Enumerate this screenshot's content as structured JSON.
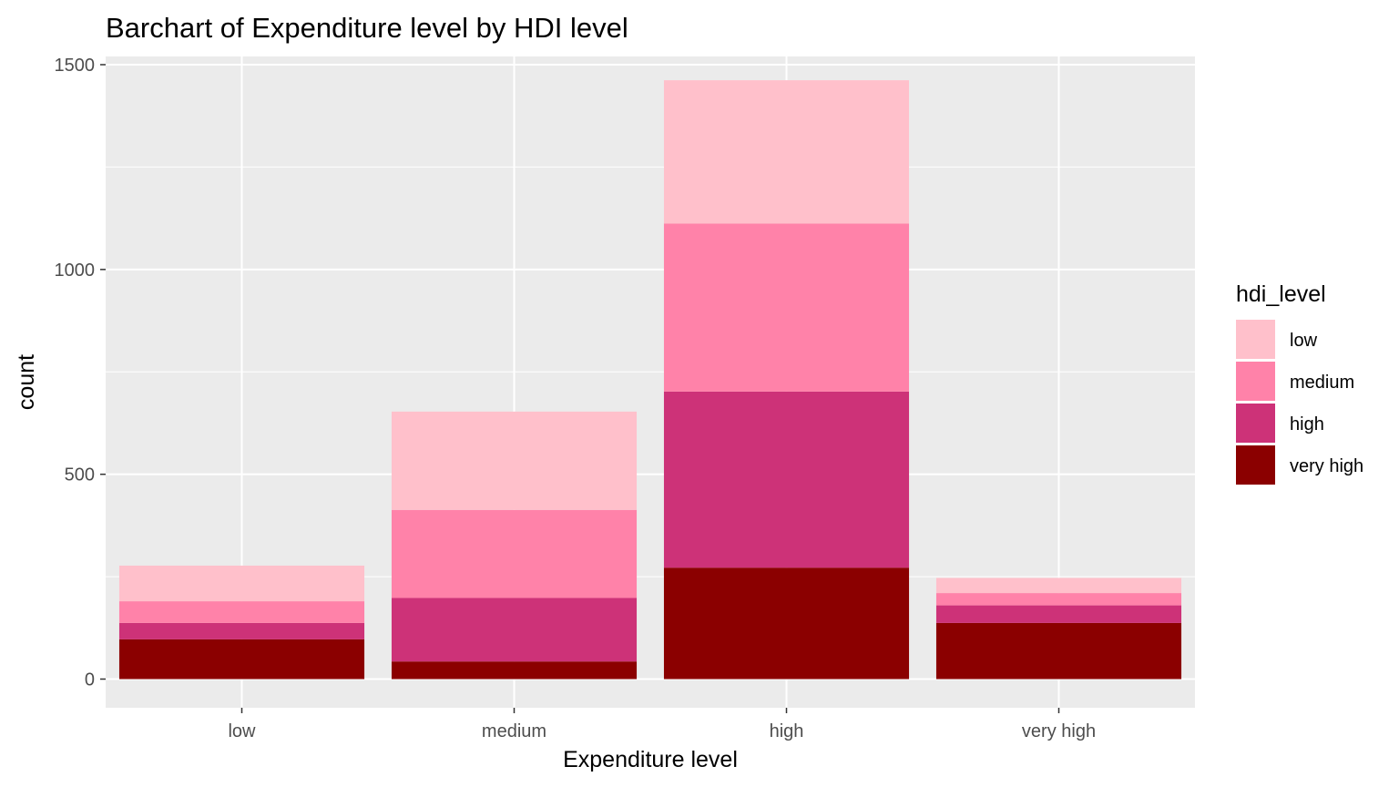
{
  "chart_data": {
    "type": "bar",
    "stacked": true,
    "title": "Barchart of Expenditure level by HDI level",
    "xlabel": "Expenditure level",
    "ylabel": "count",
    "categories": [
      "low",
      "medium",
      "high",
      "very high"
    ],
    "ylim": [
      -70,
      1520
    ],
    "yticks": [
      0,
      500,
      1000,
      1500
    ],
    "grid": true,
    "legend": {
      "title": "hdi_level",
      "position": "right"
    },
    "series": [
      {
        "name": "low",
        "color": "#FFC0CB",
        "values": [
          87,
          240,
          350,
          37
        ]
      },
      {
        "name": "medium",
        "color": "#FF82A9",
        "values": [
          53,
          215,
          410,
          30
        ]
      },
      {
        "name": "high",
        "color": "#CD3278",
        "values": [
          40,
          155,
          430,
          43
        ]
      },
      {
        "name": "very high",
        "color": "#8B0000",
        "values": [
          97,
          43,
          272,
          137
        ]
      }
    ]
  }
}
